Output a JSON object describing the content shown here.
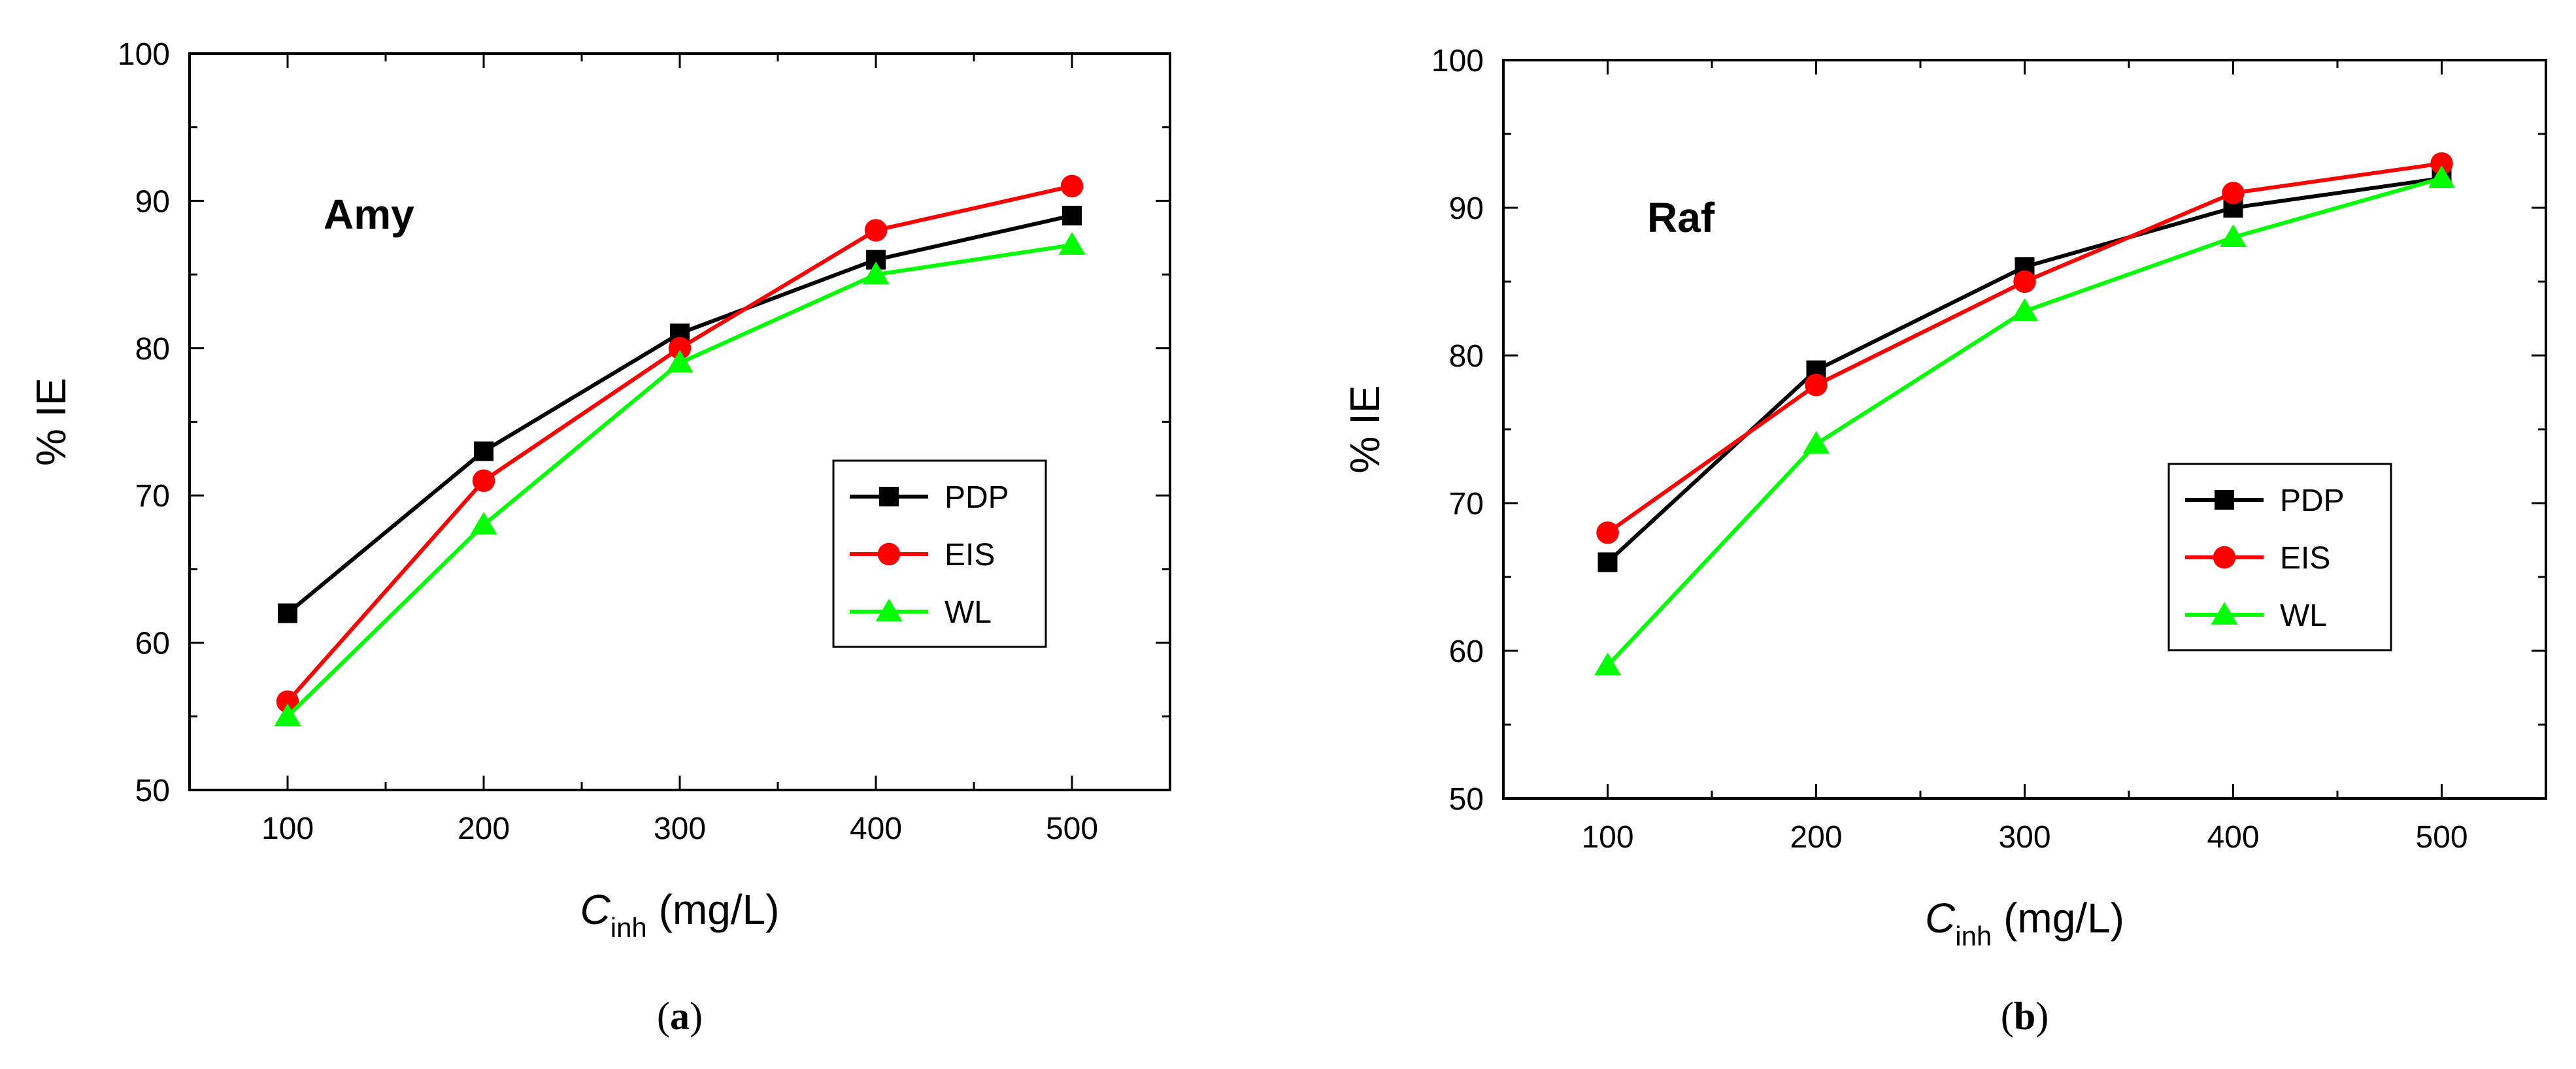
{
  "chart_data": [
    {
      "type": "line",
      "title": "Amy",
      "caption_letter": "a",
      "xlabel_main": "C",
      "xlabel_sub": "inh",
      "xlabel_unit": " (mg/L)",
      "ylabel": "% IE",
      "xlim": [
        50,
        550
      ],
      "ylim": [
        50,
        100
      ],
      "xticks": [
        100,
        200,
        300,
        400,
        500
      ],
      "yticks": [
        50,
        60,
        70,
        80,
        90,
        100
      ],
      "x": [
        100,
        200,
        300,
        400,
        500
      ],
      "legend_position": "center-right",
      "series": [
        {
          "name": "PDP",
          "color": "#000000",
          "marker": "square",
          "values": [
            62,
            73,
            81,
            86,
            89
          ]
        },
        {
          "name": "EIS",
          "color": "#ff0000",
          "marker": "circle",
          "values": [
            56,
            71,
            80,
            88,
            91
          ]
        },
        {
          "name": "WL",
          "color": "#00ff00",
          "marker": "triangle",
          "values": [
            55,
            68,
            79,
            85,
            87
          ]
        }
      ]
    },
    {
      "type": "line",
      "title": "Raf",
      "caption_letter": "b",
      "xlabel_main": "C",
      "xlabel_sub": "inh",
      "xlabel_unit": " (mg/L)",
      "ylabel": "% IE",
      "xlim": [
        50,
        550
      ],
      "ylim": [
        50,
        100
      ],
      "xticks": [
        100,
        200,
        300,
        400,
        500
      ],
      "yticks": [
        50,
        60,
        70,
        80,
        90,
        100
      ],
      "x": [
        100,
        200,
        300,
        400,
        500
      ],
      "legend_position": "center-right",
      "series": [
        {
          "name": "PDP",
          "color": "#000000",
          "marker": "square",
          "values": [
            66,
            79,
            86,
            90,
            92
          ]
        },
        {
          "name": "EIS",
          "color": "#ff0000",
          "marker": "circle",
          "values": [
            68,
            78,
            85,
            91,
            93
          ]
        },
        {
          "name": "WL",
          "color": "#00ff00",
          "marker": "triangle",
          "values": [
            59,
            74,
            83,
            88,
            92
          ]
        }
      ]
    }
  ]
}
